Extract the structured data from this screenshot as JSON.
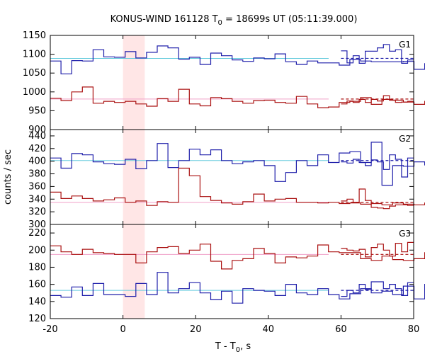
{
  "chart_data": {
    "type": "line",
    "title": "KONUS-WIND 161128 T₀ = 18699s UT (05:11:39.000)",
    "title_parts": {
      "prefix": "KONUS-WIND 161128 T",
      "subscript": "0",
      "suffix": " = 18699s UT (05:11:39.000)"
    },
    "xlabel": "T - T₀, s",
    "xlabel_parts": {
      "prefix": "T - T",
      "subscript": "0",
      "suffix": ", s"
    },
    "ylabel": "counts / sec",
    "xlim": [
      -20,
      80
    ],
    "x_ticks": [
      "-20",
      "0",
      "20",
      "40",
      "60",
      "80"
    ],
    "highlight_interval": {
      "x": [
        0,
        6
      ],
      "color": "#ffe6e6"
    },
    "colors": {
      "blue": "#1e1eaa",
      "red": "#aa1010",
      "cyan": "#66ccdd",
      "pink": "#f0a0c8"
    },
    "panels": [
      {
        "name": "G1",
        "ylim": [
          900,
          1150
        ],
        "y_ticks": [
          "900",
          "950",
          "1000",
          "1050",
          "1100",
          "1150"
        ],
        "series": [
          {
            "color": "blue",
            "bin_width": 2.944,
            "values_before_gap": [
              1082,
              1048,
              1083,
              1082,
              1112,
              1093,
              1092,
              1107,
              1090,
              1105,
              1122,
              1117,
              1087,
              1092,
              1073,
              1103,
              1096,
              1085,
              1081,
              1090,
              1088,
              1101,
              1080,
              1073,
              1082,
              1077,
              1077,
              1071,
              1086,
              1082,
              1080,
              1080,
              1080,
              1081,
              1060,
              1075,
              1080,
              1083,
              1078,
              1077,
              1076,
              1072
            ],
            "values_after_gap": [
              1109,
              1077,
              1096,
              1076,
              1108,
              1108,
              1117,
              1126,
              1108,
              1112,
              1076,
              1085
            ],
            "mean": 1089,
            "mean_color": "cyan"
          },
          {
            "color": "red",
            "bin_width": 2.944,
            "values_before_gap": [
              983,
              977,
              1000,
              1013,
              970,
              975,
              972,
              975,
              968,
              962,
              982,
              975,
              1007,
              968,
              963,
              985,
              982,
              975,
              970,
              977,
              978,
              972,
              970,
              988,
              968,
              958,
              960,
              972,
              975,
              985,
              967,
              980,
              978,
              973,
              967,
              975,
              977,
              982,
              985,
              983
            ],
            "values_after_gap": [
              968,
              976,
              972,
              980,
              972,
              980,
              976,
              990,
              978,
              972,
              973,
              975
            ],
            "mean": 981,
            "mean_color": "pink"
          }
        ]
      },
      {
        "name": "G2",
        "ylim": [
          300,
          450
        ],
        "y_ticks": [
          "300",
          "320",
          "340",
          "360",
          "380",
          "400",
          "420",
          "440"
        ],
        "series": [
          {
            "color": "blue",
            "bin_width": 2.944,
            "values_before_gap": [
              405,
              389,
              412,
              410,
              399,
              396,
              395,
              403,
              388,
              401,
              428,
              390,
              401,
              419,
              410,
              418,
              401,
              396,
              399,
              401,
              393,
              368,
              382,
              401,
              393,
              410,
              398,
              413,
              415,
              398,
              430,
              362,
              393,
              392,
              399,
              394,
              398,
              401
            ],
            "values_after_gap": [
              399,
              397,
              403,
              398,
              393,
              402,
              399,
              387,
              410,
              403,
              375,
              405
            ],
            "mean": 401,
            "mean_color": "cyan"
          },
          {
            "color": "red",
            "bin_width": 2.944,
            "values_before_gap": [
              351,
              341,
              345,
              341,
              337,
              339,
              342,
              335,
              337,
              330,
              336,
              335,
              389,
              377,
              344,
              338,
              334,
              332,
              336,
              348,
              337,
              340,
              341,
              335,
              335,
              334,
              335,
              333,
              334,
              332,
              333,
              331,
              334,
              332,
              331,
              334,
              330,
              327,
              336,
              338,
              328
            ],
            "values_after_gap": [
              337,
              340,
              335,
              356,
              338,
              327,
              326,
              325,
              329,
              331,
              331,
              330
            ],
            "mean": 335,
            "mean_color": "pink"
          }
        ]
      },
      {
        "name": "G3",
        "ylim": [
          120,
          230
        ],
        "y_ticks": [
          "120",
          "140",
          "160",
          "180",
          "200",
          "220"
        ],
        "series": [
          {
            "color": "red",
            "bin_width": 2.944,
            "values_before_gap": [
              205,
              198,
              195,
              201,
              197,
              196,
              195,
              195,
              185,
              198,
              203,
              204,
              196,
              200,
              207,
              187,
              178,
              188,
              190,
              202,
              196,
              185,
              192,
              191,
              193,
              206,
              198,
              197,
              197,
              190,
              188,
              193,
              189,
              188,
              190,
              197,
              194
            ],
            "values_after_gap": [
              202,
              200,
              199,
              201,
              192,
              203,
              207,
              200,
              193,
              208,
              198,
              209
            ],
            "mean": 195,
            "mean_color": "pink"
          },
          {
            "color": "blue",
            "bin_width": 2.944,
            "values_before_gap": [
              147,
              145,
              157,
              147,
              161,
              148,
              148,
              146,
              161,
              148,
              174,
              150,
              155,
              162,
              150,
              142,
              152,
              138,
              155,
              153,
              152,
              147,
              160,
              150,
              148,
              155,
              148,
              143,
              149,
              155,
              150,
              152,
              148,
              158,
              143,
              160,
              150,
              156,
              152,
              155
            ],
            "values_after_gap": [
              146,
              153,
              150,
              160,
              154,
              163,
              163,
              155,
              160,
              155,
              147,
              162
            ],
            "mean": 153,
            "mean_color": "cyan"
          }
        ]
      }
    ]
  }
}
